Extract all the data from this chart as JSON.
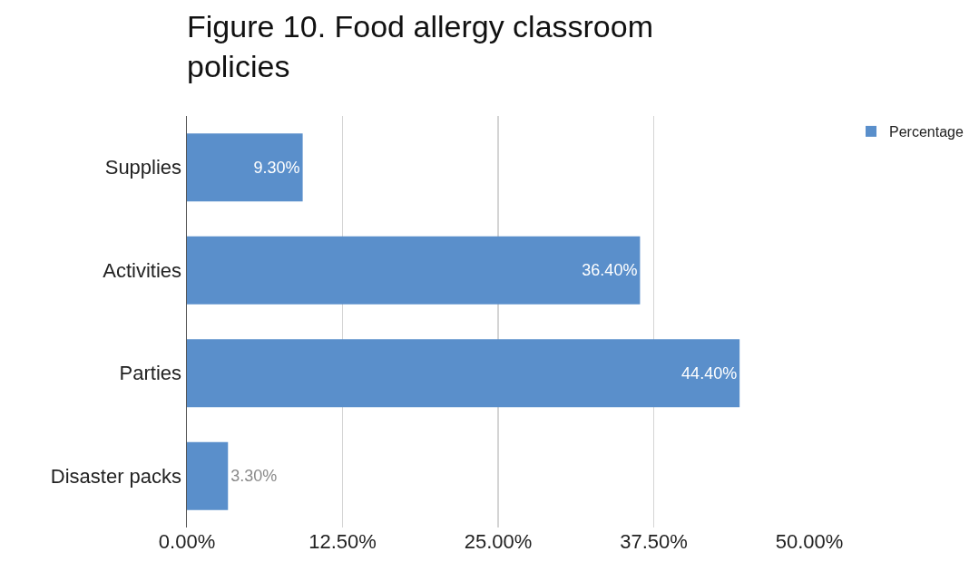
{
  "chart_data": {
    "type": "bar",
    "orientation": "horizontal",
    "title": "Figure 10. Food allergy classroom policies",
    "categories": [
      "Supplies",
      "Activities",
      "Parties",
      "Disaster packs"
    ],
    "series": [
      {
        "name": "Percentage",
        "color": "#5a8fcb",
        "values": [
          9.3,
          36.4,
          44.4,
          3.3
        ],
        "value_labels": [
          "9.30%",
          "36.40%",
          "44.40%",
          "3.30%"
        ]
      }
    ],
    "xlim": [
      0,
      50
    ],
    "xticks": [
      {
        "value": 0,
        "label": "0.00%"
      },
      {
        "value": 12.5,
        "label": "12.50%"
      },
      {
        "value": 25,
        "label": "25.00%"
      },
      {
        "value": 37.5,
        "label": "37.50%"
      },
      {
        "value": 50,
        "label": "50.00%"
      }
    ],
    "grid": "x",
    "legend": "top right"
  }
}
